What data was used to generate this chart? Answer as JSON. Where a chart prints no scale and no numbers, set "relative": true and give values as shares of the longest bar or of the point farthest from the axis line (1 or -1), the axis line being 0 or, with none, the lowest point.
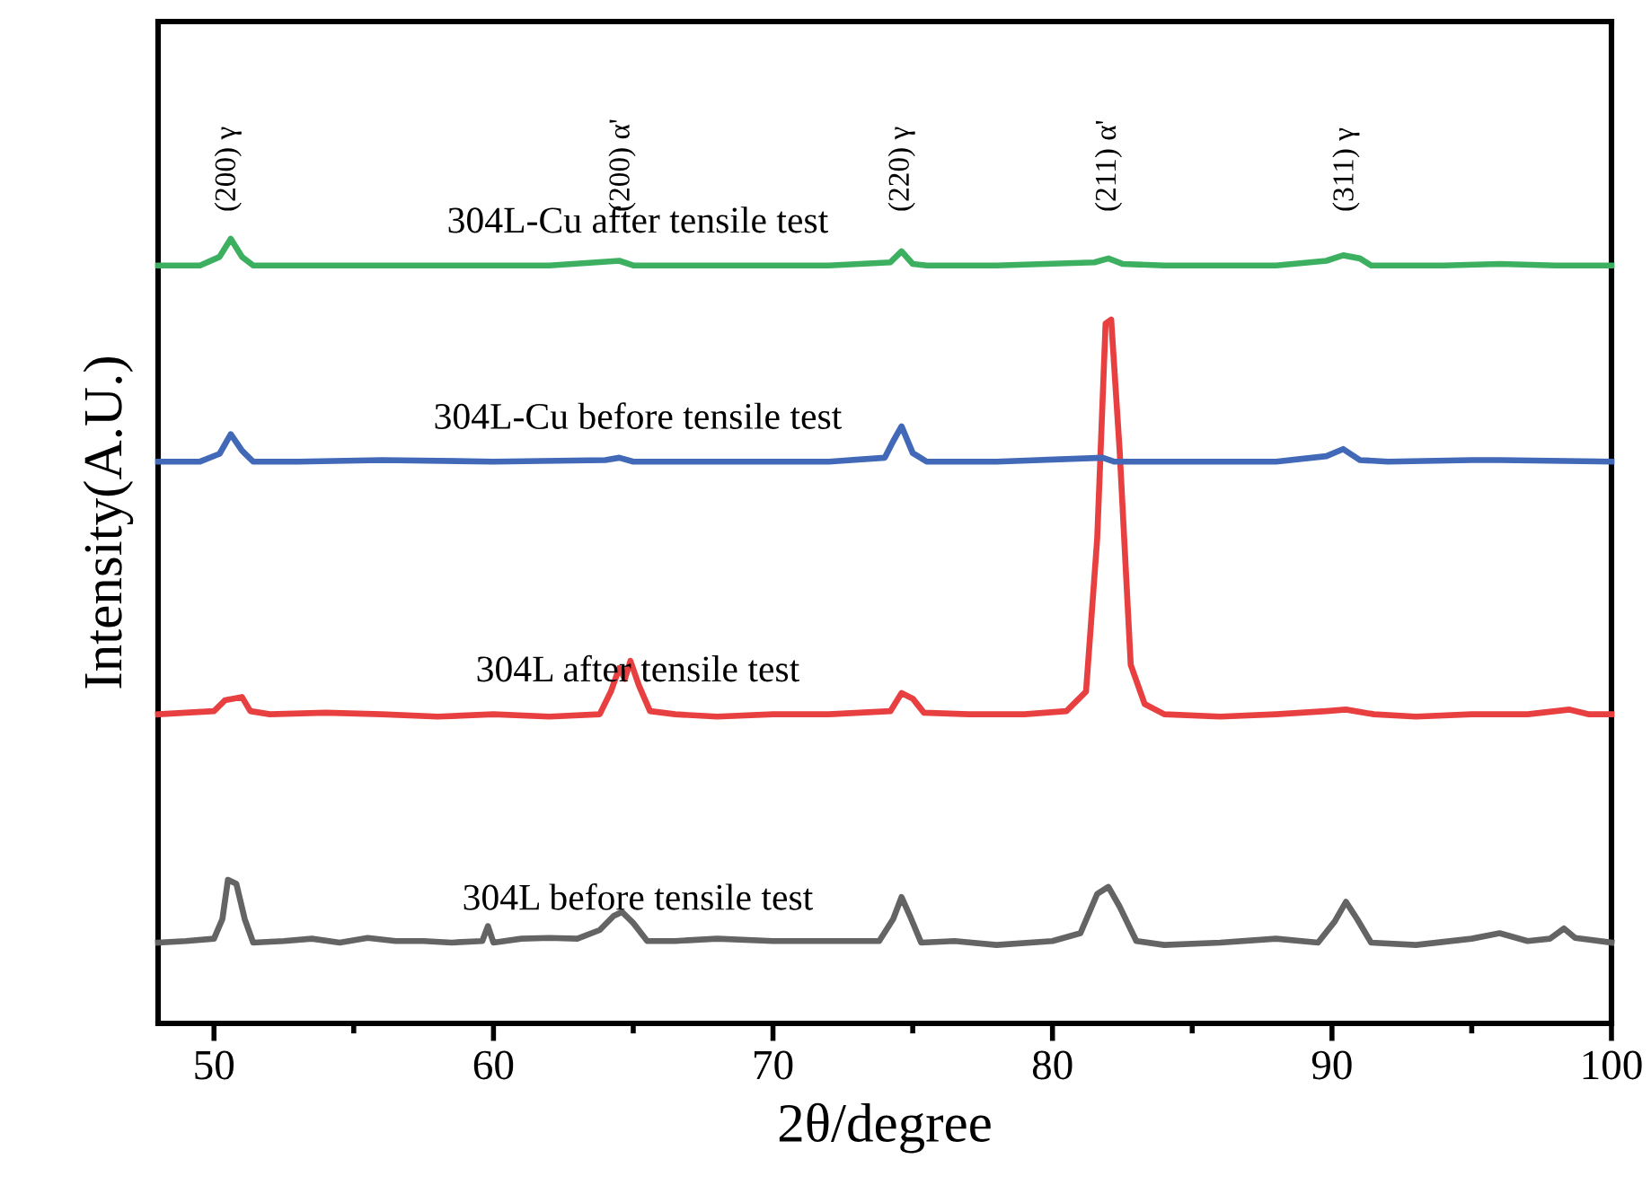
{
  "chart_data": {
    "type": "line",
    "relative": true,
    "xlabel": "2θ/degree",
    "ylabel": "Intensity(A.U.)",
    "xlim": [
      48,
      100
    ],
    "xticks": [
      50,
      60,
      70,
      80,
      90,
      100
    ],
    "grid": false,
    "legend": false,
    "marker": "none",
    "line_style": "solid",
    "annotations": [
      "(200) γ",
      "(200) α'",
      "(220) γ",
      "(211) α'",
      "(311) γ"
    ],
    "series": [
      {
        "name": "304L before tensile test",
        "color": "#646464",
        "x": [
          48,
          49,
          50,
          50.3,
          50.5,
          50.8,
          51.1,
          51.4,
          52.5,
          53.5,
          54.5,
          55.5,
          56.5,
          57.5,
          58.5,
          59.6,
          59.8,
          60.0,
          61,
          62,
          63,
          63.8,
          64.3,
          64.6,
          65,
          65.5,
          66.5,
          68,
          70,
          72,
          73.8,
          74.3,
          74.6,
          74.9,
          75.3,
          76.5,
          78,
          80,
          81,
          81.6,
          82.0,
          82.4,
          83,
          84,
          86,
          88,
          89.5,
          90.1,
          90.5,
          90.9,
          91.4,
          93,
          95,
          96,
          97,
          97.8,
          98.3,
          98.7,
          100
        ],
        "values": [
          0.103,
          0.105,
          0.108,
          0.133,
          0.183,
          0.178,
          0.133,
          0.103,
          0.105,
          0.108,
          0.103,
          0.109,
          0.105,
          0.105,
          0.103,
          0.105,
          0.124,
          0.103,
          0.108,
          0.109,
          0.108,
          0.119,
          0.137,
          0.142,
          0.128,
          0.105,
          0.105,
          0.108,
          0.105,
          0.105,
          0.105,
          0.133,
          0.161,
          0.137,
          0.103,
          0.105,
          0.1,
          0.105,
          0.115,
          0.165,
          0.174,
          0.149,
          0.105,
          0.1,
          0.103,
          0.108,
          0.103,
          0.13,
          0.155,
          0.133,
          0.103,
          0.1,
          0.108,
          0.115,
          0.105,
          0.108,
          0.121,
          0.109,
          0.103
        ]
      },
      {
        "name": "304L after tensile test",
        "color": "#e84040",
        "x": [
          48,
          49,
          50,
          50.4,
          50.7,
          51,
          51.3,
          52,
          54,
          56,
          58,
          60,
          62,
          63.8,
          64.2,
          64.5,
          64.7,
          64.9,
          65.2,
          65.6,
          66.5,
          68,
          70,
          72,
          74.2,
          74.6,
          75,
          75.4,
          77,
          79,
          80.5,
          81.2,
          81.6,
          81.9,
          82.1,
          82.4,
          82.8,
          83.3,
          84,
          86,
          88,
          89.8,
          90.5,
          91.5,
          93,
          95,
          97,
          98.5,
          99.2,
          100
        ],
        "values": [
          0.394,
          0.396,
          0.398,
          0.412,
          0.414,
          0.416,
          0.398,
          0.394,
          0.396,
          0.394,
          0.391,
          0.394,
          0.391,
          0.394,
          0.423,
          0.453,
          0.439,
          0.462,
          0.431,
          0.398,
          0.394,
          0.391,
          0.394,
          0.394,
          0.398,
          0.421,
          0.414,
          0.396,
          0.394,
          0.394,
          0.398,
          0.423,
          0.618,
          0.892,
          0.897,
          0.732,
          0.457,
          0.407,
          0.394,
          0.391,
          0.394,
          0.398,
          0.4,
          0.394,
          0.391,
          0.394,
          0.394,
          0.4,
          0.394,
          0.394
        ]
      },
      {
        "name": "304L-Cu before tensile test",
        "color": "#4169b8",
        "x": [
          48,
          49.5,
          50.2,
          50.6,
          51,
          51.4,
          53,
          56,
          60,
          64,
          64.5,
          65,
          68,
          72,
          74,
          74.3,
          74.6,
          75,
          75.5,
          78,
          81.8,
          82.2,
          85,
          88,
          89.8,
          90.4,
          91,
          92,
          95,
          96,
          100
        ],
        "values": [
          0.716,
          0.716,
          0.726,
          0.751,
          0.73,
          0.716,
          0.716,
          0.718,
          0.716,
          0.718,
          0.721,
          0.716,
          0.716,
          0.716,
          0.721,
          0.742,
          0.761,
          0.727,
          0.716,
          0.716,
          0.721,
          0.716,
          0.716,
          0.716,
          0.723,
          0.732,
          0.718,
          0.716,
          0.718,
          0.718,
          0.716
        ]
      },
      {
        "name": "304L-Cu after tensile test",
        "color": "#3cb060",
        "x": [
          48,
          49.5,
          50.2,
          50.6,
          51,
          51.4,
          54,
          58,
          62,
          64.5,
          65,
          68,
          72,
          74.2,
          74.6,
          75,
          75.5,
          78,
          81.5,
          82,
          82.5,
          84,
          88,
          89.8,
          90.4,
          91,
          91.4,
          94,
          96,
          98,
          100
        ],
        "values": [
          0.966,
          0.966,
          0.977,
          1.0,
          0.977,
          0.966,
          0.966,
          0.966,
          0.966,
          0.972,
          0.966,
          0.966,
          0.966,
          0.97,
          0.984,
          0.968,
          0.966,
          0.966,
          0.97,
          0.975,
          0.968,
          0.966,
          0.966,
          0.972,
          0.979,
          0.975,
          0.966,
          0.966,
          0.968,
          0.966,
          0.966
        ]
      }
    ]
  }
}
